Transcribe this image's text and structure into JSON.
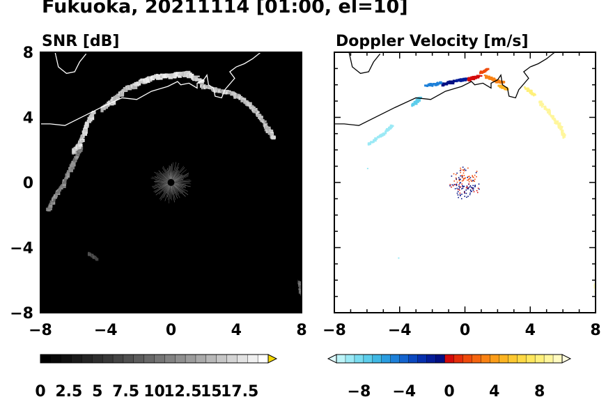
{
  "title": "Fukuoka, 20211114 [01:00, el=10]",
  "colors": {
    "background": "#ffffff",
    "snr_panel": "#000000",
    "coastline_on_snr": "#ffffff",
    "coastline_on_vel": "#000000"
  },
  "chart_data": [
    {
      "type": "heatmap",
      "title": "SNR [dB]",
      "xlim": [
        -8,
        8
      ],
      "ylim": [
        -8,
        8
      ],
      "x_ticks": [
        "−8",
        "−4",
        "0",
        "4",
        "8"
      ],
      "y_ticks": [
        "8",
        "4",
        "0",
        "−4",
        "−8"
      ],
      "colorbar": {
        "ticks": [
          "0",
          "2.5",
          "5",
          "7.5",
          "10",
          "12.5",
          "15",
          "17.5"
        ],
        "range": [
          0,
          20
        ],
        "extend": "max",
        "colors": [
          "#000000",
          "#080808",
          "#101010",
          "#1a1a1a",
          "#242424",
          "#2e2e2e",
          "#383838",
          "#444444",
          "#505050",
          "#5c5c5c",
          "#686868",
          "#757575",
          "#828282",
          "#8f8f8f",
          "#9c9c9c",
          "#aaaaaa",
          "#b8b8b8",
          "#c6c6c6",
          "#d4d4d4",
          "#e2e2e2",
          "#f0f0f0",
          "#ffffff"
        ],
        "over_color": "#f4d800"
      }
    },
    {
      "type": "heatmap",
      "title": "Doppler Velocity [m/s]",
      "xlim": [
        -8,
        8
      ],
      "ylim": [
        -8,
        8
      ],
      "x_ticks": [
        "−8",
        "−4",
        "0",
        "4",
        "8"
      ],
      "y_ticks": [
        "8",
        "4",
        "0",
        "−4",
        "−8"
      ],
      "colorbar": {
        "ticks": [
          "−8",
          "−4",
          "0",
          "4",
          "8"
        ],
        "range": [
          -10,
          10
        ],
        "extend": "both",
        "colors": [
          "#bdf4f8",
          "#9be9f5",
          "#79dcf0",
          "#5ccdeb",
          "#3fb8e4",
          "#2a9de0",
          "#1d80d9",
          "#1464cf",
          "#0b48c0",
          "#062fae",
          "#041c98",
          "#020e82",
          "#d40a0a",
          "#e52d0a",
          "#ef4a0b",
          "#f56510",
          "#f98214",
          "#fb9d1a",
          "#fcb422",
          "#fdc831",
          "#fed944",
          "#ffe75c",
          "#fff07a",
          "#fff69c",
          "#fffac0"
        ],
        "under_color": "#e0fbff",
        "over_color": "#fffde0"
      }
    }
  ]
}
